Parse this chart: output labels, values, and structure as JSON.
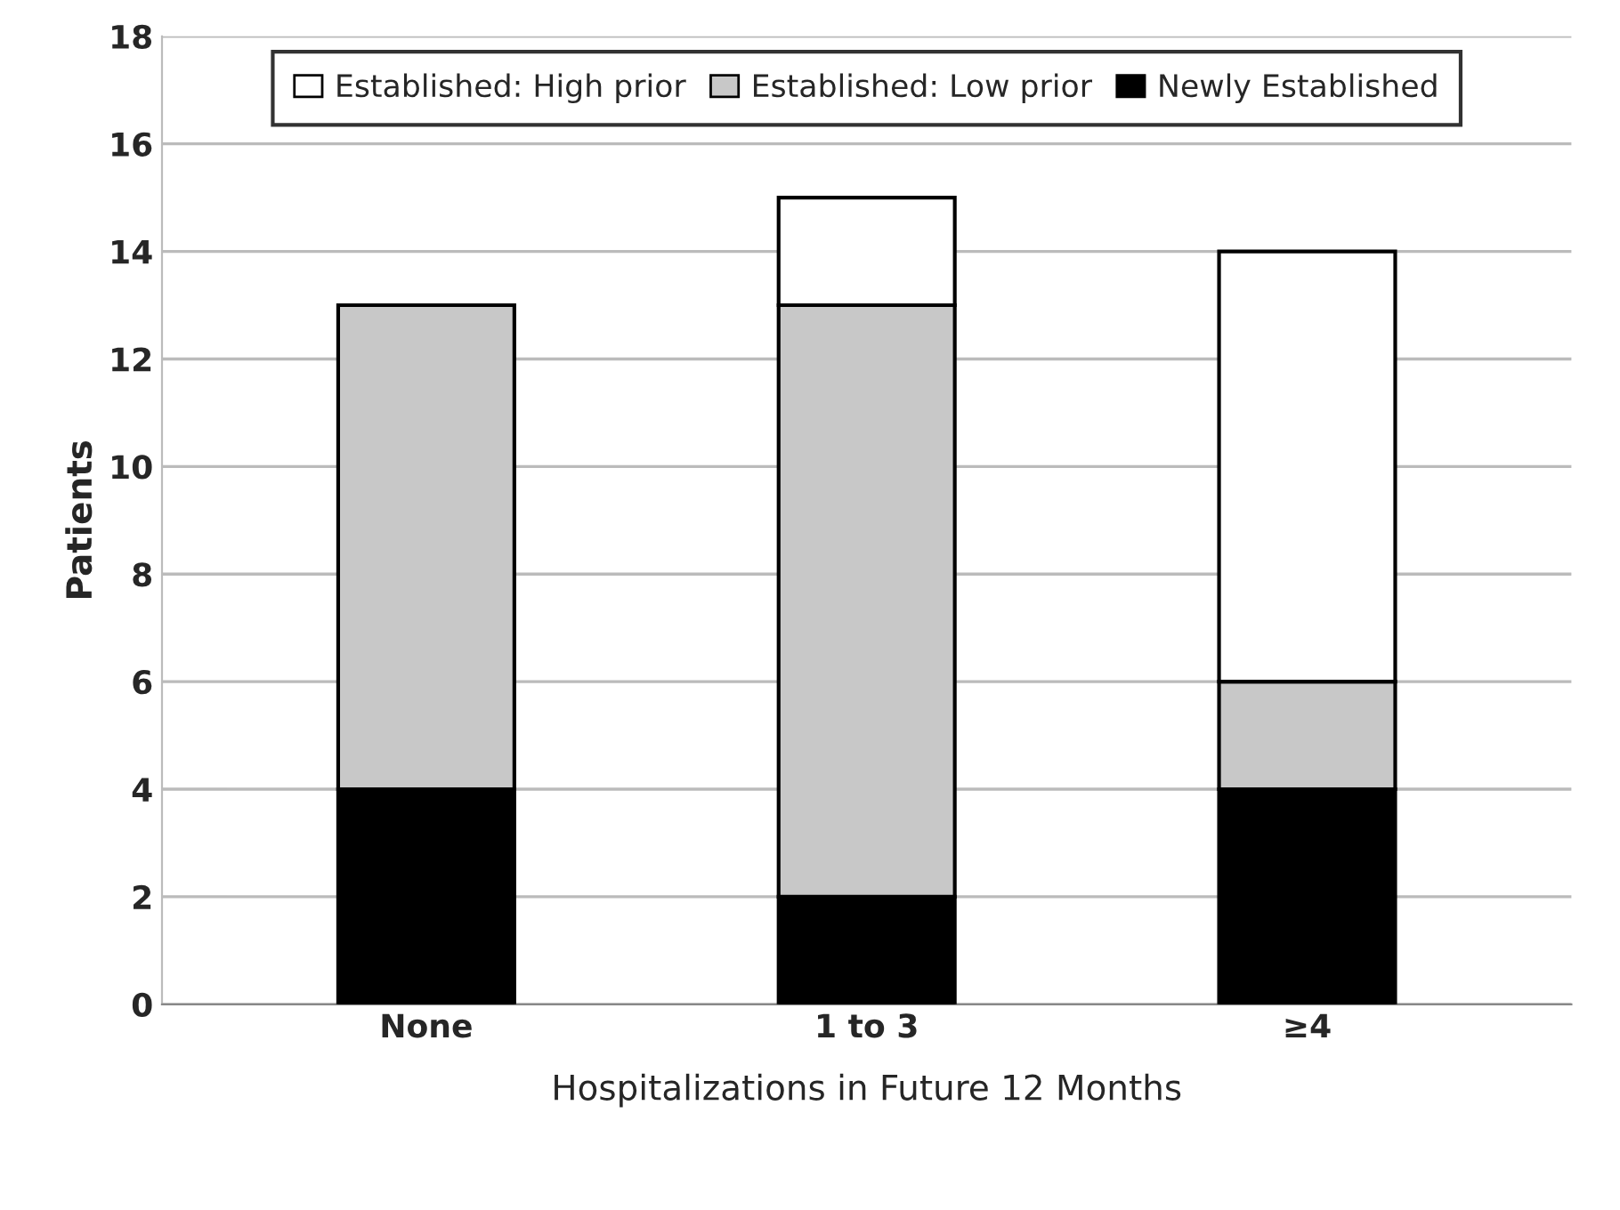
{
  "chart_data": {
    "type": "bar",
    "stacked": true,
    "xlabel": "Hospitalizations in Future 12 Months",
    "ylabel": "Patients",
    "categories": [
      "None",
      "1 to 3",
      "≥4"
    ],
    "series": [
      {
        "name": "Newly Established",
        "color": "#000000",
        "values": [
          4,
          2,
          4
        ]
      },
      {
        "name": "Established: Low prior",
        "color": "#c8c8c8",
        "values": [
          9,
          11,
          2
        ]
      },
      {
        "name": "Established: High prior",
        "color": "#ffffff",
        "values": [
          null,
          2,
          8
        ]
      }
    ],
    "ylim": [
      0,
      18
    ],
    "yticks": [
      0,
      2,
      4,
      6,
      8,
      10,
      12,
      14,
      16,
      18
    ],
    "grid": "y",
    "legend": "top"
  }
}
